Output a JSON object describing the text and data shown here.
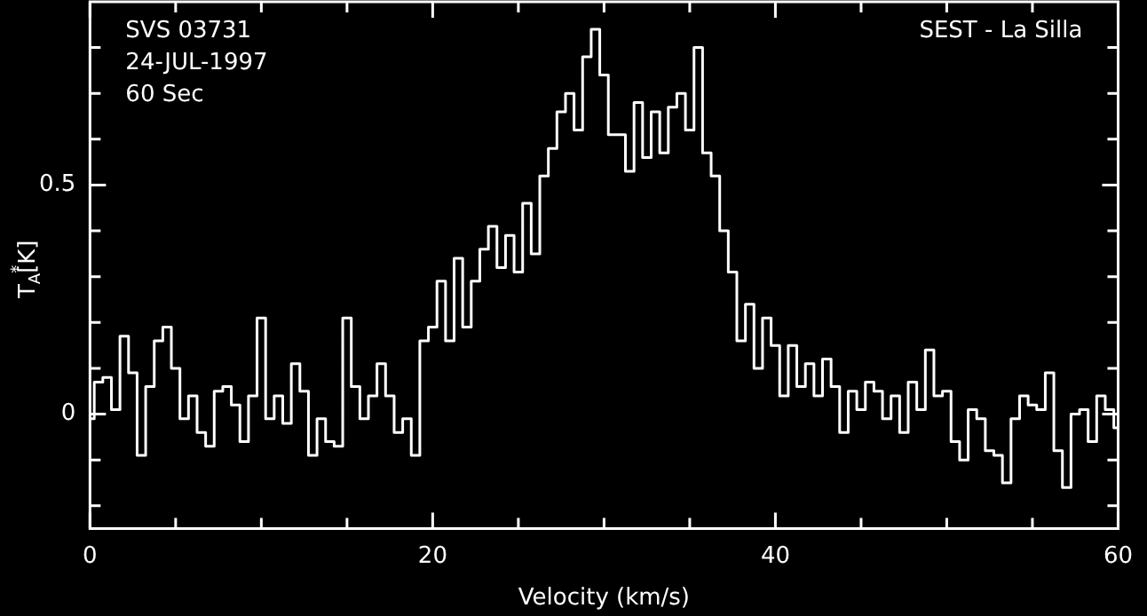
{
  "chart_data": {
    "type": "step",
    "xlabel": "Velocity (km/s)",
    "ylabel": "T$_{A}$$^{*}$[K]",
    "annotations": [
      "SVS 03731",
      "24-JUL-1997",
      "60 Sec",
      "SEST - La Silla"
    ],
    "x": [
      0,
      0.5,
      1,
      1.5,
      2,
      2.5,
      3,
      3.5,
      4,
      4.5,
      5,
      5.5,
      6,
      6.5,
      7,
      7.5,
      8,
      8.5,
      9,
      9.5,
      10,
      10.5,
      11,
      11.5,
      12,
      12.5,
      13,
      13.5,
      14,
      14.5,
      15,
      15.5,
      16,
      16.5,
      17,
      17.5,
      18,
      18.5,
      19,
      19.5,
      20,
      20.5,
      21,
      21.5,
      22,
      22.5,
      23,
      23.5,
      24,
      24.5,
      25,
      25.5,
      26,
      26.5,
      27,
      27.5,
      28,
      28.5,
      29,
      29.5,
      30,
      30.5,
      31,
      31.5,
      32,
      32.5,
      33,
      33.5,
      34,
      34.5,
      35,
      35.5,
      36,
      36.5,
      37,
      37.5,
      38,
      38.5,
      39,
      39.5,
      40,
      40.5,
      41,
      41.5,
      42,
      42.5,
      43,
      43.5,
      44,
      44.5,
      45,
      45.5,
      46,
      46.5,
      47,
      47.5,
      48,
      48.5,
      49,
      49.5,
      50,
      50.5,
      51,
      51.5,
      52,
      52.5,
      53,
      53.5,
      54,
      54.5,
      55,
      55.5,
      56,
      56.5,
      57,
      57.5,
      58,
      58.5,
      59,
      59.5,
      60
    ],
    "series": [
      {
        "color": "#ffffff",
        "values": [
          -0.01,
          0.07,
          0.08,
          0.01,
          0.17,
          0.09,
          -0.09,
          0.06,
          0.16,
          0.19,
          0.1,
          -0.01,
          0.04,
          -0.04,
          -0.07,
          0.05,
          0.06,
          0.02,
          -0.06,
          0.04,
          0.21,
          -0.01,
          0.04,
          -0.02,
          0.11,
          0.05,
          -0.09,
          -0.01,
          -0.06,
          -0.07,
          0.21,
          0.06,
          -0.01,
          0.04,
          0.11,
          0.04,
          -0.04,
          -0.01,
          -0.09,
          0.16,
          0.19,
          0.29,
          0.16,
          0.34,
          0.19,
          0.29,
          0.36,
          0.41,
          0.32,
          0.39,
          0.31,
          0.46,
          0.35,
          0.52,
          0.58,
          0.66,
          0.7,
          0.62,
          0.78,
          0.84,
          0.74,
          0.61,
          0.61,
          0.53,
          0.68,
          0.56,
          0.66,
          0.57,
          0.67,
          0.7,
          0.62,
          0.8,
          0.57,
          0.52,
          0.4,
          0.31,
          0.16,
          0.24,
          0.1,
          0.21,
          0.15,
          0.04,
          0.15,
          0.06,
          0.11,
          0.04,
          0.12,
          0.06,
          -0.04,
          0.05,
          0.01,
          0.07,
          0.05,
          -0.01,
          0.04,
          -0.04,
          0.07,
          0.01,
          0.14,
          0.04,
          0.05,
          -0.06,
          -0.1,
          0.01,
          -0.01,
          -0.08,
          -0.09,
          -0.15,
          -0.01,
          0.04,
          0.02,
          0.01,
          0.09,
          -0.08,
          -0.16,
          0,
          0.01,
          -0.06,
          0.04,
          0.01,
          -0.03
        ]
      }
    ],
    "xlim": [
      0,
      60
    ],
    "xticks": [
      0,
      {
        "value": 5,
        "label": null
      },
      {
        "value": 10,
        "label": null
      },
      {
        "value": 15,
        "label": null
      },
      20,
      {
        "value": 25,
        "label": null
      },
      {
        "value": 30,
        "label": null
      },
      {
        "value": 35,
        "label": null
      },
      40,
      {
        "value": 45,
        "label": null
      },
      {
        "value": 50,
        "label": null
      },
      {
        "value": 55,
        "label": null
      },
      60
    ],
    "ylim": [
      -0.25,
      0.9
    ],
    "yticks": [
      {
        "value": -0.2,
        "label": null
      },
      {
        "value": -0.1,
        "label": null
      },
      0,
      {
        "value": 0.1,
        "label": null
      },
      {
        "value": 0.2,
        "label": null
      },
      {
        "value": 0.3,
        "label": null
      },
      {
        "value": 0.4,
        "label": null
      },
      0.5,
      {
        "value": 0.6,
        "label": null
      },
      {
        "value": 0.7,
        "label": null
      },
      {
        "value": 0.8,
        "label": null
      }
    ],
    "legend": false,
    "marker": "none",
    "line_style": "solid"
  }
}
